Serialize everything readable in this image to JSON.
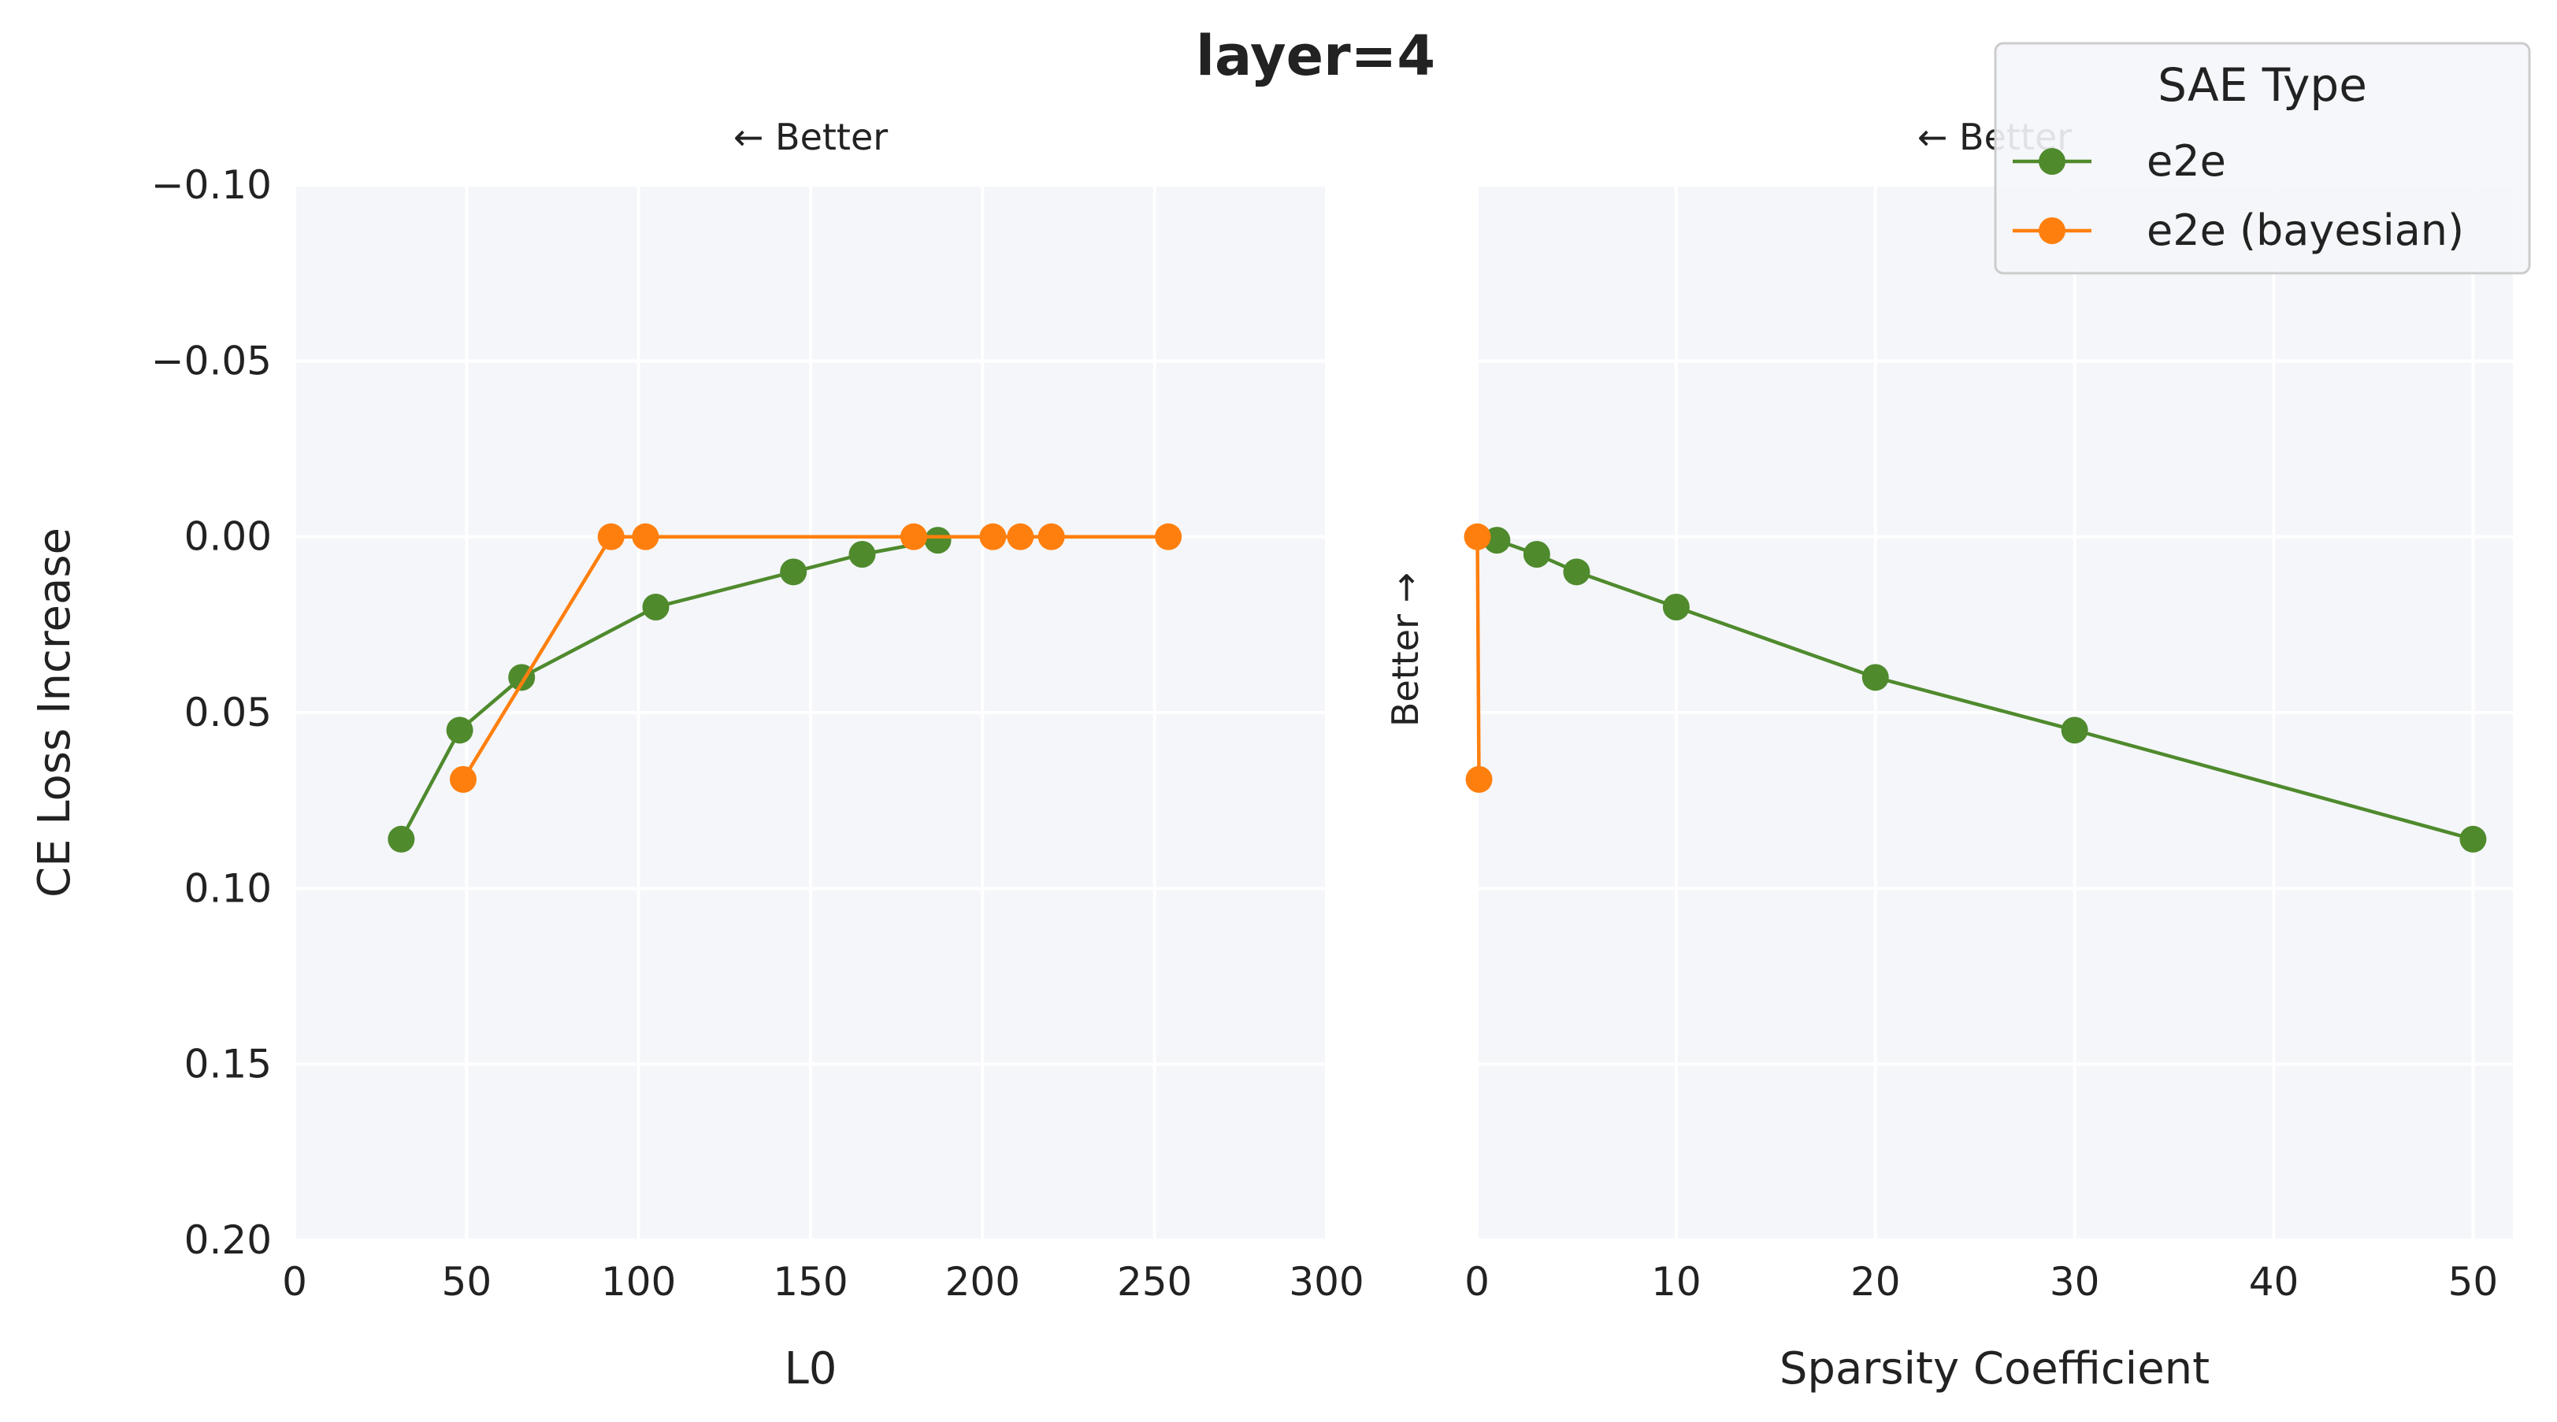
{
  "chart_data": {
    "type": "line",
    "title": "layer=4",
    "ylabel": "CE Loss Increase",
    "ylim": [
      -0.1,
      0.2
    ],
    "y_inverted": true,
    "yticks": [
      -0.1,
      -0.05,
      0.0,
      0.05,
      0.1,
      0.15,
      0.2
    ],
    "ytick_labels": [
      "−0.10",
      "−0.05",
      "0.00",
      "0.05",
      "0.10",
      "0.15",
      "0.20"
    ],
    "grid": true,
    "legend": {
      "title": "SAE Type",
      "placement": "top-right",
      "entries": [
        {
          "name": "e2e",
          "color": "#4f8a2d"
        },
        {
          "name": "e2e (bayesian)",
          "color": "#ff7f0e"
        }
      ]
    },
    "panels": [
      {
        "xlabel": "L0",
        "xlim": [
          0,
          300
        ],
        "xticks": [
          0,
          50,
          100,
          150,
          200,
          250,
          300
        ],
        "annotations": [
          "← Better"
        ],
        "series": [
          {
            "name": "e2e",
            "color": "#4f8a2d",
            "x": [
              31,
              48,
              66,
              105,
              145,
              165,
              187
            ],
            "y": [
              0.086,
              0.055,
              0.04,
              0.02,
              0.01,
              0.005,
              0.001
            ]
          },
          {
            "name": "e2e (bayesian)",
            "color": "#ff7f0e",
            "x": [
              49,
              92,
              102,
              180,
              203,
              211,
              220,
              254
            ],
            "y": [
              0.069,
              0.0,
              0.0,
              0.0,
              0.0,
              0.0,
              0.0,
              0.0
            ]
          }
        ]
      },
      {
        "xlabel": "Sparsity Coefficient",
        "xlim": [
          0,
          52
        ],
        "xticks": [
          0,
          10,
          20,
          30,
          40,
          50
        ],
        "annotations": [
          "← Better",
          "Better →"
        ],
        "series": [
          {
            "name": "e2e",
            "color": "#4f8a2d",
            "x": [
              1,
              3,
              5,
              10,
              20,
              30,
              50
            ],
            "y": [
              0.001,
              0.005,
              0.01,
              0.02,
              0.04,
              0.055,
              0.086
            ]
          },
          {
            "name": "e2e (bayesian)",
            "color": "#ff7f0e",
            "x": [
              0.02,
              0.1
            ],
            "y": [
              0.0,
              0.069
            ]
          }
        ]
      }
    ]
  }
}
